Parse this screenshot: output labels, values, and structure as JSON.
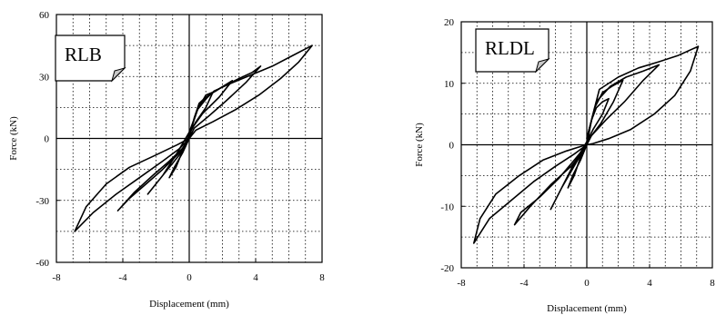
{
  "chart_data": [
    {
      "type": "line",
      "panel_tag": "RLB",
      "xlabel": "Displacement (mm)",
      "ylabel": "Force (kN)",
      "xlim": [
        -8,
        8
      ],
      "ylim": [
        -60,
        60
      ],
      "xticks": [
        "-8",
        "-4",
        "0",
        "4",
        "8"
      ],
      "yticks": [
        "60",
        "30",
        "0",
        "-30",
        "-60"
      ],
      "grid": "dotted",
      "series": [
        {
          "x": [
            0,
            0.3,
            0.6,
            1.0,
            1.4,
            1.0,
            0.4,
            0.0,
            -0.4,
            -0.8,
            -1.2,
            -0.9,
            -0.4,
            0.0
          ],
          "y": [
            0,
            10,
            17,
            20,
            22,
            15,
            8,
            2,
            -6,
            -14,
            -19,
            -14,
            -7,
            0
          ]
        },
        {
          "x": [
            0,
            0.5,
            1.0,
            1.6,
            2.2,
            2.6,
            1.8,
            0.8,
            0.0,
            -0.8,
            -1.6,
            -2.2,
            -2.5,
            -1.6,
            -0.6,
            0.0
          ],
          "y": [
            2,
            14,
            21,
            23,
            26,
            28,
            20,
            12,
            3,
            -8,
            -18,
            -24,
            -27,
            -18,
            -8,
            0
          ]
        },
        {
          "x": [
            0,
            0.5,
            1.2,
            2.0,
            3.0,
            3.8,
            4.3,
            3.4,
            2.2,
            1.2,
            0.3,
            0.0,
            -0.6,
            -1.6,
            -2.6,
            -3.6,
            -4.3,
            -3.3,
            -2.2,
            -1.2,
            -0.3,
            0.0
          ],
          "y": [
            2,
            14,
            21,
            25,
            29,
            32,
            35,
            27,
            18,
            11,
            5,
            0,
            -7,
            -15,
            -22,
            -29,
            -35,
            -26,
            -18,
            -11,
            -4,
            0
          ]
        },
        {
          "x": [
            0,
            0.6,
            1.5,
            2.6,
            3.8,
            5.0,
            6.2,
            7.4,
            6.6,
            5.5,
            4.2,
            2.8,
            1.4,
            0.4,
            0.0,
            -0.6,
            -1.6,
            -3.0,
            -4.4,
            -5.8,
            -6.9,
            -6.2,
            -5.0,
            -3.6,
            -2.0,
            -0.7,
            0.0
          ],
          "y": [
            3,
            16,
            23,
            27,
            31,
            35,
            40,
            45,
            37,
            29,
            21,
            14,
            8,
            4,
            0,
            -5,
            -11,
            -19,
            -27,
            -36,
            -45,
            -33,
            -22,
            -14,
            -8,
            -3,
            0
          ]
        }
      ]
    },
    {
      "type": "line",
      "panel_tag": "RLDL",
      "xlabel": "Displacement (mm)",
      "ylabel": "Force (kN)",
      "xlim": [
        -8,
        8
      ],
      "ylim": [
        -20,
        20
      ],
      "xticks": [
        "-8",
        "-4",
        "0",
        "4",
        "8"
      ],
      "yticks": [
        "20",
        "10",
        "0",
        "-10",
        "-20"
      ],
      "grid": "dotted",
      "series": [
        {
          "x": [
            0,
            0.3,
            0.6,
            1.0,
            1.4,
            1.0,
            0.4,
            0.0,
            -0.4,
            -0.8,
            -1.2,
            -0.9,
            -0.4,
            0.0
          ],
          "y": [
            0,
            4,
            6,
            7,
            7.5,
            5,
            2.5,
            0.5,
            -2,
            -5,
            -7,
            -5,
            -2.5,
            0
          ]
        },
        {
          "x": [
            0,
            0.5,
            1.0,
            1.6,
            2.3,
            1.7,
            0.9,
            0.0,
            -0.8,
            -1.6,
            -2.3,
            -1.6,
            -0.7,
            0.0
          ],
          "y": [
            1,
            6,
            8.5,
            9.5,
            10.5,
            7,
            3.5,
            0.5,
            -3,
            -7,
            -10.5,
            -7,
            -3,
            0
          ]
        },
        {
          "x": [
            0,
            0.6,
            1.5,
            2.5,
            3.6,
            4.6,
            3.6,
            2.4,
            1.2,
            0.3,
            0.0,
            -0.8,
            -1.8,
            -3.0,
            -4.2,
            -4.6,
            -3.6,
            -2.3,
            -1.0,
            -0.2,
            0.0
          ],
          "y": [
            1,
            7,
            9.5,
            11,
            12,
            13,
            10.5,
            7,
            4,
            1.5,
            0,
            -2.5,
            -5.5,
            -8.5,
            -11,
            -13,
            -10,
            -6.5,
            -3.5,
            -1,
            0
          ]
        },
        {
          "x": [
            0,
            0.8,
            2.0,
            3.3,
            4.6,
            5.8,
            7.1,
            6.6,
            5.6,
            4.3,
            2.8,
            1.4,
            0.4,
            0.0,
            -0.8,
            -2.0,
            -3.4,
            -4.8,
            -6.2,
            -7.2,
            -6.8,
            -5.8,
            -4.3,
            -2.8,
            -1.3,
            -0.3,
            0.0
          ],
          "y": [
            1,
            9,
            11,
            12.5,
            13.5,
            14.5,
            16,
            12,
            8,
            5,
            2.5,
            1,
            0.2,
            0,
            -1.5,
            -3.5,
            -6,
            -9,
            -12,
            -16,
            -12,
            -8,
            -5,
            -2.5,
            -1,
            -0.2,
            0
          ]
        }
      ]
    }
  ]
}
